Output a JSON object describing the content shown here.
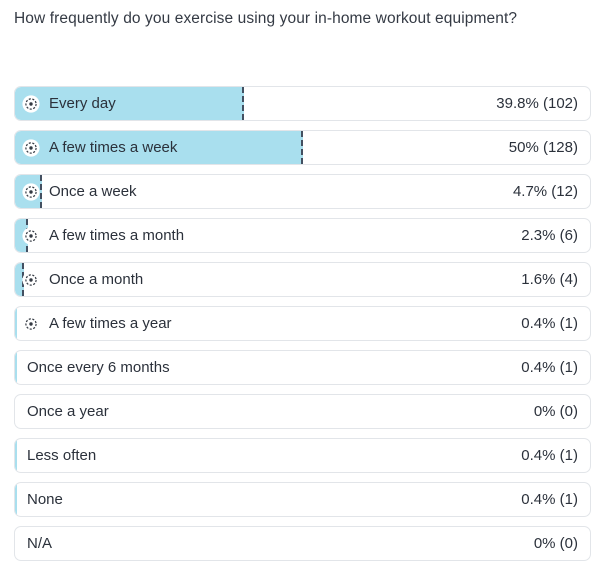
{
  "title": "How frequently do you exercise using your in-home workout equipment?",
  "colors": {
    "bar_fill": "#a9dfee",
    "bar_end_marker": "#435061",
    "row_border": "#e2e5e9",
    "text": "#2b313b",
    "icon_glyph": "#343a43",
    "icon_background": "#ffffff",
    "background": "#ffffff"
  },
  "icon_legend": {
    "target-icon": "bullseye / goal marker shown on top answers"
  },
  "chart_data": {
    "type": "bar",
    "orientation": "horizontal",
    "title": "How frequently do you exercise using your in-home workout equipment?",
    "categories": [
      "Every day",
      "A few times a week",
      "Once a week",
      "A few times a month",
      "Once a month",
      "A few times a year",
      "Once every 6 months",
      "Once a year",
      "Less often",
      "None",
      "N/A"
    ],
    "values": [
      39.8,
      50,
      4.7,
      2.3,
      1.6,
      0.4,
      0.4,
      0,
      0.4,
      0.4,
      0
    ],
    "counts": [
      102,
      128,
      12,
      6,
      4,
      1,
      1,
      0,
      1,
      1,
      0
    ],
    "value_labels": [
      "39.8% (102)",
      "50% (128)",
      "4.7% (12)",
      "2.3% (6)",
      "1.6% (4)",
      "0.4% (1)",
      "0.4% (1)",
      "0% (0)",
      "0.4% (1)",
      "0.4% (1)",
      "0% (0)"
    ],
    "xlim": [
      0,
      100
    ],
    "unit": "%",
    "grid": false,
    "legend": false
  },
  "rows": [
    {
      "label": "Every day",
      "value_label": "39.8% (102)",
      "percent": 39.8,
      "count": 102,
      "has_icon": true
    },
    {
      "label": "A few times a week",
      "value_label": "50% (128)",
      "percent": 50,
      "count": 128,
      "has_icon": true
    },
    {
      "label": "Once a week",
      "value_label": "4.7% (12)",
      "percent": 4.7,
      "count": 12,
      "has_icon": true
    },
    {
      "label": "A few times a month",
      "value_label": "2.3% (6)",
      "percent": 2.3,
      "count": 6,
      "has_icon": true
    },
    {
      "label": "Once a month",
      "value_label": "1.6% (4)",
      "percent": 1.6,
      "count": 4,
      "has_icon": true
    },
    {
      "label": "A few times a year",
      "value_label": "0.4% (1)",
      "percent": 0.4,
      "count": 1,
      "has_icon": true
    },
    {
      "label": "Once every 6 months",
      "value_label": "0.4% (1)",
      "percent": 0.4,
      "count": 1,
      "has_icon": false
    },
    {
      "label": "Once a year",
      "value_label": "0% (0)",
      "percent": 0,
      "count": 0,
      "has_icon": false
    },
    {
      "label": "Less often",
      "value_label": "0.4% (1)",
      "percent": 0.4,
      "count": 1,
      "has_icon": false
    },
    {
      "label": "None",
      "value_label": "0.4% (1)",
      "percent": 0.4,
      "count": 1,
      "has_icon": false
    },
    {
      "label": "N/A",
      "value_label": "0% (0)",
      "percent": 0,
      "count": 0,
      "has_icon": false
    }
  ]
}
